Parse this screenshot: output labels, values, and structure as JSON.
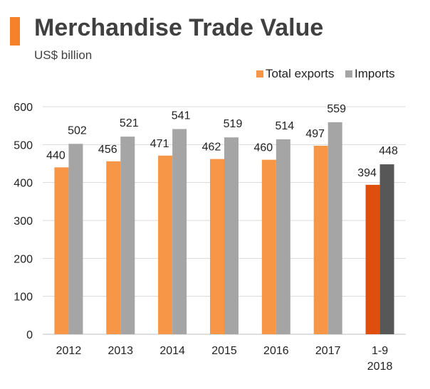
{
  "header": {
    "title": "Merchandise Trade Value",
    "subtitle": "US$ billion"
  },
  "colors": {
    "accent": "#f5822a",
    "exports": "#f79646",
    "imports": "#a5a5a5",
    "exports_highlight": "#e04e0e",
    "imports_highlight": "#575757",
    "axis": "#bfbfbf",
    "grid": "#d9d9d9"
  },
  "chart_data": {
    "type": "bar",
    "title": "Merchandise Trade Value",
    "subtitle": "US$ billion",
    "categories": [
      "2012",
      "2013",
      "2014",
      "2015",
      "2016",
      "2017",
      "1-9\n2018"
    ],
    "series": [
      {
        "name": "Total exports",
        "values": [
          440,
          456,
          471,
          462,
          460,
          497,
          394
        ]
      },
      {
        "name": "Imports",
        "values": [
          502,
          521,
          541,
          519,
          514,
          559,
          448
        ]
      }
    ],
    "highlighted_category_index": 6,
    "ylim": [
      0,
      600
    ],
    "yticks": [
      0,
      100,
      200,
      300,
      400,
      500,
      600
    ],
    "grid": true,
    "legend": "top-right",
    "data_labels": true
  }
}
